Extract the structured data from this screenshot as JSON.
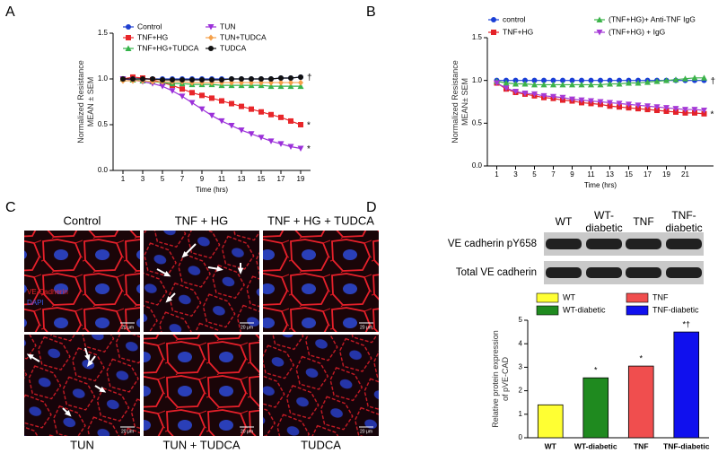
{
  "chart_data": [
    {
      "type": "line",
      "x_label": "Time (hrs)",
      "y_label": [
        "Normalized Resistance",
        "MEAN ± SEM"
      ],
      "x": [
        1,
        2,
        3,
        4,
        5,
        6,
        7,
        8,
        9,
        10,
        11,
        12,
        13,
        14,
        15,
        16,
        17,
        18,
        19
      ],
      "xlim": [
        0,
        20
      ],
      "xticks": [
        1,
        3,
        5,
        7,
        9,
        11,
        13,
        15,
        17,
        19
      ],
      "ylim": [
        0,
        1.5
      ],
      "yticks": [
        {
          "value": 0,
          "label": "0.0"
        },
        0.5,
        {
          "value": 1,
          "label": "1.0"
        },
        1.5
      ],
      "series": [
        {
          "name": "Control",
          "color": "#1f3fd0",
          "marker": "circle",
          "annotation": "†",
          "values": [
            1,
            1,
            1,
            1,
            1,
            1,
            1,
            1,
            1,
            1,
            1,
            1,
            1,
            1,
            1,
            1,
            1.01,
            1.01,
            1.02
          ]
        },
        {
          "name": "TNF+HG",
          "color": "#e8262a",
          "marker": "square",
          "annotation": "*",
          "values": [
            1,
            1.02,
            1.01,
            0.99,
            0.96,
            0.93,
            0.89,
            0.85,
            0.82,
            0.79,
            0.76,
            0.73,
            0.7,
            0.67,
            0.64,
            0.61,
            0.58,
            0.54,
            0.5
          ]
        },
        {
          "name": "TNF+HG+TUDCA",
          "color": "#35b44a",
          "marker": "triangle",
          "values": [
            1,
            0.99,
            0.98,
            0.97,
            0.96,
            0.95,
            0.95,
            0.94,
            0.94,
            0.94,
            0.93,
            0.93,
            0.93,
            0.93,
            0.93,
            0.92,
            0.92,
            0.92,
            0.92
          ]
        },
        {
          "name": "TUN",
          "color": "#9b30d9",
          "marker": "triangle-down",
          "annotation": "*",
          "values": [
            1,
            0.99,
            0.97,
            0.95,
            0.92,
            0.87,
            0.81,
            0.74,
            0.67,
            0.6,
            0.54,
            0.49,
            0.44,
            0.4,
            0.36,
            0.32,
            0.29,
            0.26,
            0.24
          ]
        },
        {
          "name": "TUN+TUDCA",
          "color": "#f5a04a",
          "marker": "diamond",
          "values": [
            0.98,
            0.98,
            0.98,
            0.97,
            0.97,
            0.97,
            0.97,
            0.96,
            0.96,
            0.96,
            0.96,
            0.96,
            0.96,
            0.96,
            0.96,
            0.96,
            0.96,
            0.96,
            0.96
          ]
        },
        {
          "name": "TUDCA",
          "color": "#111111",
          "marker": "circle",
          "values": [
            1,
            1,
            1,
            1,
            0.99,
            0.99,
            0.99,
            0.99,
            0.99,
            0.99,
            0.99,
            1,
            1,
            1,
            1,
            1,
            1.01,
            1.01,
            1.02
          ]
        }
      ]
    },
    {
      "type": "line",
      "x_label": "Time (hrs)",
      "y_label": [
        "Normalized Resistance",
        "MEAN± SEM"
      ],
      "x": [
        1,
        2,
        3,
        4,
        5,
        6,
        7,
        8,
        9,
        10,
        11,
        12,
        13,
        14,
        15,
        16,
        17,
        18,
        19,
        20,
        21,
        22,
        23
      ],
      "xlim": [
        0,
        24
      ],
      "xticks": [
        1,
        3,
        5,
        7,
        9,
        11,
        13,
        15,
        17,
        19,
        21
      ],
      "ylim": [
        0,
        1.5
      ],
      "yticks": [
        {
          "value": 0,
          "label": "0.0"
        },
        0.5,
        {
          "value": 1,
          "label": "1.0"
        },
        1.5
      ],
      "series": [
        {
          "name": "control",
          "color": "#1a3fd6",
          "marker": "circle",
          "annotation": "†",
          "values": [
            1,
            1,
            1,
            1,
            1,
            1,
            1,
            1,
            1,
            1,
            1,
            1,
            1,
            1,
            1,
            1,
            1,
            1,
            1,
            1,
            1,
            1,
            1
          ]
        },
        {
          "name": "TNF+HG",
          "color": "#e42228",
          "marker": "square",
          "annotation": "*",
          "values": [
            0.97,
            0.9,
            0.86,
            0.84,
            0.82,
            0.8,
            0.79,
            0.77,
            0.76,
            0.74,
            0.73,
            0.72,
            0.7,
            0.69,
            0.68,
            0.67,
            0.66,
            0.65,
            0.64,
            0.63,
            0.62,
            0.62,
            0.61
          ]
        },
        {
          "name": "(TNF+HG)+ Anti-TNF IgG",
          "color": "#3cb34a",
          "marker": "triangle",
          "values": [
            0.99,
            0.97,
            0.96,
            0.96,
            0.95,
            0.95,
            0.95,
            0.95,
            0.95,
            0.95,
            0.95,
            0.95,
            0.96,
            0.96,
            0.97,
            0.97,
            0.98,
            0.99,
            1,
            1.01,
            1.02,
            1.03,
            1.03
          ]
        },
        {
          "name": "(TNF+HG) + IgG",
          "color": "#a53ad6",
          "marker": "triangle-down",
          "values": [
            0.97,
            0.91,
            0.87,
            0.85,
            0.84,
            0.82,
            0.81,
            0.8,
            0.78,
            0.77,
            0.76,
            0.75,
            0.74,
            0.73,
            0.72,
            0.71,
            0.7,
            0.69,
            0.68,
            0.67,
            0.66,
            0.66,
            0.65
          ]
        }
      ]
    },
    {
      "type": "bar",
      "y_label": [
        "Relative protein expression",
        "of pVE-CAD"
      ],
      "categories": [
        "WT",
        "WT-diabetic",
        "TNF",
        "TNF-diabetic"
      ],
      "values": [
        1.4,
        2.55,
        3.05,
        4.5
      ],
      "colors": [
        "#ffff33",
        "#1f8a1f",
        "#f04e4e",
        "#1010ee"
      ],
      "value_annotations": [
        null,
        "*",
        "*",
        "*†"
      ],
      "ylim": [
        0,
        5
      ],
      "yticks": [
        0,
        1,
        2,
        3,
        4,
        5
      ]
    }
  ],
  "panel_labels": [
    "A",
    "B",
    "C",
    "D"
  ],
  "images": {
    "titles": [
      "Control",
      "TNF + HG",
      "TNF + HG + TUDCA",
      "TUN",
      "TUN + TUDCA",
      "TUDCA"
    ],
    "stain_labels": [
      "VE-Cadherin",
      "DAPI"
    ],
    "scale_bar": "20 μm"
  },
  "blot": {
    "columns": [
      [
        "WT"
      ],
      [
        "WT-",
        "diabetic"
      ],
      [
        "TNF"
      ],
      [
        "TNF-",
        "diabetic"
      ]
    ],
    "rows": [
      "VE cadherin pY658",
      "Total VE cadherin"
    ]
  }
}
